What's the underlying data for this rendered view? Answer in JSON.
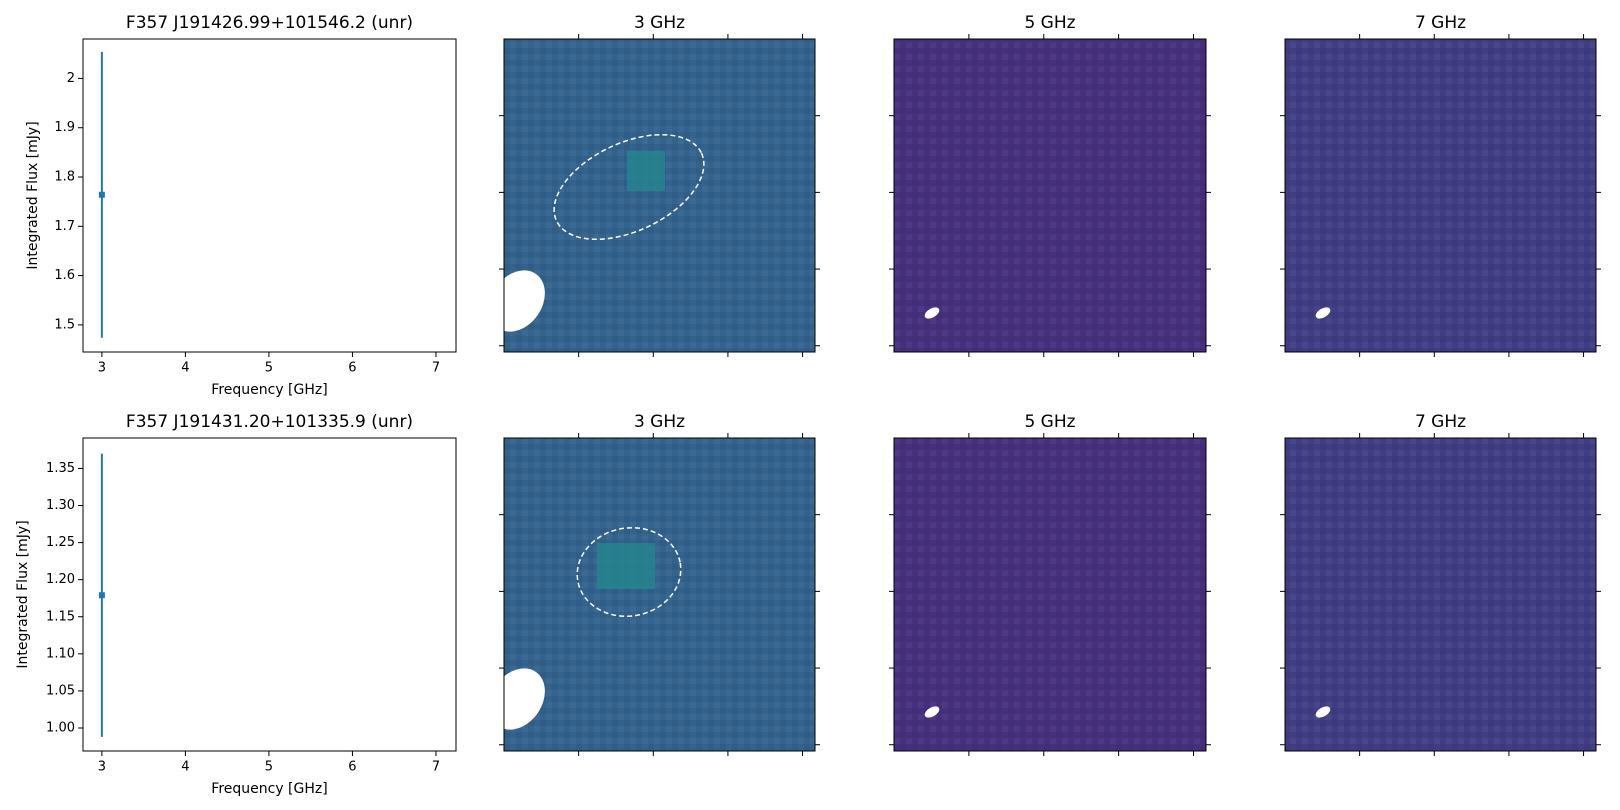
{
  "chart_data": [
    {
      "type": "errorbar",
      "title": "F357 J191426.99+101546.2 (unr)",
      "x_label": "Frequency [GHz]",
      "y_label": "Integrated Flux [mJy]",
      "x": [
        3
      ],
      "values": [
        1.764
      ],
      "errors": [
        0.29
      ],
      "color": "#1f77b4",
      "xlim": [
        2.774,
        7.24
      ],
      "xticks": [
        3,
        4,
        5,
        6,
        7
      ],
      "ylim": [
        1.445,
        2.08
      ],
      "yticks": [
        1.5,
        1.6,
        1.7,
        1.8,
        1.9,
        2.0
      ]
    },
    {
      "type": "image",
      "title": "3 GHz",
      "color": "#33638d"
    },
    {
      "type": "image",
      "title": "5 GHz",
      "color": "#46307e"
    },
    {
      "type": "image",
      "title": "7 GHz",
      "color": "#413d84"
    },
    {
      "type": "errorbar",
      "title": "F357 J191431.20+101335.9 (unr)",
      "x_label": "Frequency [GHz]",
      "y_label": "Integrated Flux [mJy]",
      "x": [
        3
      ],
      "values": [
        1.179
      ],
      "errors": [
        0.191
      ],
      "color": "#1f77b4",
      "xlim": [
        2.774,
        7.24
      ],
      "xticks": [
        3,
        4,
        5,
        6,
        7
      ],
      "ylim": [
        0.969,
        1.391
      ],
      "yticks": [
        {
          "value": 1.0,
          "label": "1.00"
        },
        1.05,
        {
          "value": 1.1,
          "label": "1.10"
        },
        1.15,
        {
          "value": 1.2,
          "label": "1.20"
        },
        1.25,
        {
          "value": 1.3,
          "label": "1.30"
        },
        1.35
      ]
    },
    {
      "type": "image",
      "title": "3 GHz",
      "color": "#33638d"
    },
    {
      "type": "image",
      "title": "5 GHz",
      "color": "#46307e"
    },
    {
      "type": "image",
      "title": "7 GHz",
      "color": "#413d84"
    }
  ]
}
